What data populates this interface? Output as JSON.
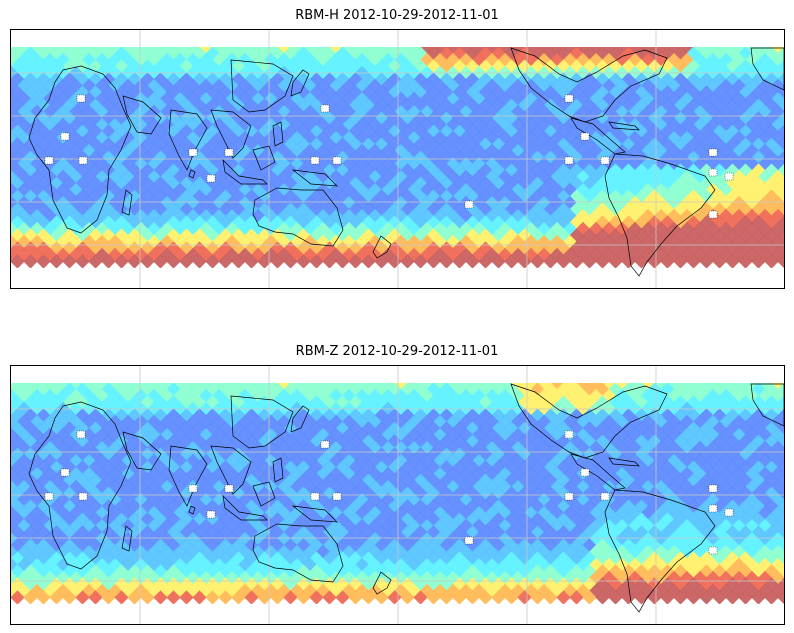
{
  "panels": [
    {
      "title": "RBM-H 2012-10-29-2012-11-01",
      "field": "RBM-H"
    },
    {
      "title": "RBM-Z 2012-10-29-2012-11-01",
      "field": "RBM-Z"
    }
  ],
  "colormap": [
    "#6a5cff",
    "#5f8bff",
    "#59c4ff",
    "#5ef2ff",
    "#8cffd0",
    "#fff06a",
    "#ffb955",
    "#ef6a55",
    "#c96060"
  ],
  "land_outline_color": "#000000",
  "grid_color": "#c8c8c8",
  "missing_color": "#ffffff"
}
